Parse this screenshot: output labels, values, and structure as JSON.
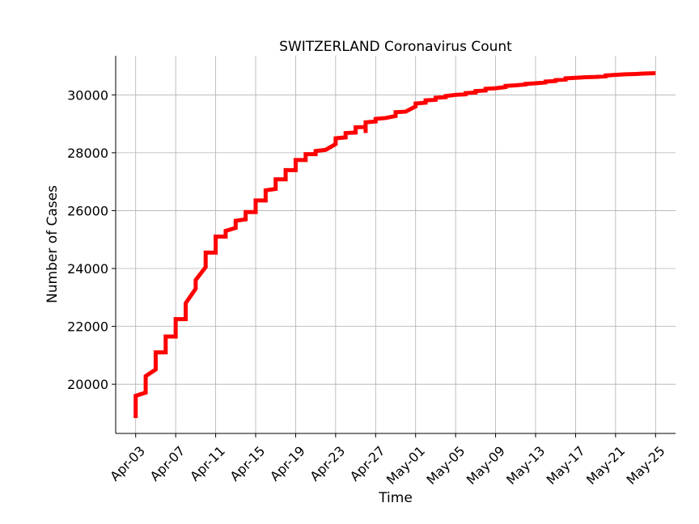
{
  "chart_data": {
    "type": "line",
    "title": "SWITZERLAND Coronavirus Count",
    "xlabel": "Time",
    "ylabel": "Number of Cases",
    "x_range": [
      "2020-04-01",
      "2020-05-27"
    ],
    "ylim": [
      18300,
      31350
    ],
    "grid": true,
    "x_ticks": [
      {
        "date": "2020-04-03",
        "label": "Apr-03"
      },
      {
        "date": "2020-04-07",
        "label": "Apr-07"
      },
      {
        "date": "2020-04-11",
        "label": "Apr-11"
      },
      {
        "date": "2020-04-15",
        "label": "Apr-15"
      },
      {
        "date": "2020-04-19",
        "label": "Apr-19"
      },
      {
        "date": "2020-04-23",
        "label": "Apr-23"
      },
      {
        "date": "2020-04-27",
        "label": "Apr-27"
      },
      {
        "date": "2020-05-01",
        "label": "May-01"
      },
      {
        "date": "2020-05-05",
        "label": "May-05"
      },
      {
        "date": "2020-05-09",
        "label": "May-09"
      },
      {
        "date": "2020-05-13",
        "label": "May-13"
      },
      {
        "date": "2020-05-17",
        "label": "May-17"
      },
      {
        "date": "2020-05-21",
        "label": "May-21"
      },
      {
        "date": "2020-05-25",
        "label": "May-25"
      }
    ],
    "y_ticks": [
      {
        "value": 20000,
        "label": "20000"
      },
      {
        "value": 22000,
        "label": "22000"
      },
      {
        "value": 24000,
        "label": "24000"
      },
      {
        "value": 26000,
        "label": "26000"
      },
      {
        "value": 28000,
        "label": "28000"
      },
      {
        "value": 30000,
        "label": "30000"
      }
    ],
    "series": [
      {
        "color": "#ff0000",
        "points": [
          [
            "2020-04-03 00:00",
            18830
          ],
          [
            "2020-04-03 00:00",
            19600
          ],
          [
            "2020-04-04 00:00",
            19710
          ],
          [
            "2020-04-04 00:00",
            20280
          ],
          [
            "2020-04-05 00:00",
            20510
          ],
          [
            "2020-04-05 00:00",
            21100
          ],
          [
            "2020-04-06 00:00",
            21100
          ],
          [
            "2020-04-06 00:00",
            21650
          ],
          [
            "2020-04-07 00:00",
            21650
          ],
          [
            "2020-04-07 00:00",
            22250
          ],
          [
            "2020-04-08 00:00",
            22250
          ],
          [
            "2020-04-08 00:00",
            22800
          ],
          [
            "2020-04-09 00:00",
            23300
          ],
          [
            "2020-04-09 00:00",
            23600
          ],
          [
            "2020-04-10 00:00",
            24050
          ],
          [
            "2020-04-10 00:00",
            24550
          ],
          [
            "2020-04-11 00:00",
            24550
          ],
          [
            "2020-04-11 00:00",
            25100
          ],
          [
            "2020-04-12 00:00",
            25100
          ],
          [
            "2020-04-12 00:00",
            25300
          ],
          [
            "2020-04-13 00:00",
            25400
          ],
          [
            "2020-04-13 00:00",
            25650
          ],
          [
            "2020-04-14 00:00",
            25700
          ],
          [
            "2020-04-14 00:00",
            25950
          ],
          [
            "2020-04-15 00:00",
            25950
          ],
          [
            "2020-04-15 00:00",
            26350
          ],
          [
            "2020-04-16 00:00",
            26350
          ],
          [
            "2020-04-16 00:00",
            26700
          ],
          [
            "2020-04-17 00:00",
            26750
          ],
          [
            "2020-04-17 00:00",
            27080
          ],
          [
            "2020-04-18 00:00",
            27080
          ],
          [
            "2020-04-18 00:00",
            27400
          ],
          [
            "2020-04-19 00:00",
            27400
          ],
          [
            "2020-04-19 00:00",
            27750
          ],
          [
            "2020-04-20 00:00",
            27750
          ],
          [
            "2020-04-20 00:00",
            27950
          ],
          [
            "2020-04-21 00:00",
            27950
          ],
          [
            "2020-04-21 00:00",
            28060
          ],
          [
            "2020-04-22 00:00",
            28100
          ],
          [
            "2020-04-23 00:00",
            28300
          ],
          [
            "2020-04-23 00:00",
            28500
          ],
          [
            "2020-04-24 00:00",
            28530
          ],
          [
            "2020-04-24 00:00",
            28680
          ],
          [
            "2020-04-25 00:00",
            28700
          ],
          [
            "2020-04-25 00:00",
            28880
          ],
          [
            "2020-04-26 00:00",
            28890
          ],
          [
            "2020-04-26 00:00",
            28680
          ],
          [
            "2020-04-26 00:00",
            29050
          ],
          [
            "2020-04-27 00:00",
            29080
          ],
          [
            "2020-04-27 00:00",
            29170
          ],
          [
            "2020-04-28 00:00",
            29200
          ],
          [
            "2020-04-29 00:00",
            29270
          ],
          [
            "2020-04-29 00:00",
            29400
          ],
          [
            "2020-04-30 00:00",
            29420
          ],
          [
            "2020-05-01 00:00",
            29600
          ],
          [
            "2020-05-01 00:00",
            29700
          ],
          [
            "2020-05-02 00:00",
            29730
          ],
          [
            "2020-05-02 00:00",
            29810
          ],
          [
            "2020-05-03 00:00",
            29830
          ],
          [
            "2020-05-03 00:00",
            29900
          ],
          [
            "2020-05-04 00:00",
            29920
          ],
          [
            "2020-05-04 00:00",
            29960
          ],
          [
            "2020-05-05 00:00",
            30000
          ],
          [
            "2020-05-06 00:00",
            30020
          ],
          [
            "2020-05-06 00:00",
            30060
          ],
          [
            "2020-05-07 00:00",
            30080
          ],
          [
            "2020-05-07 00:00",
            30130
          ],
          [
            "2020-05-08 00:00",
            30150
          ],
          [
            "2020-05-08 00:00",
            30210
          ],
          [
            "2020-05-09 00:00",
            30230
          ],
          [
            "2020-05-10 00:00",
            30270
          ],
          [
            "2020-05-10 00:00",
            30310
          ],
          [
            "2020-05-11 00:00",
            30330
          ],
          [
            "2020-05-12 00:00",
            30360
          ],
          [
            "2020-05-12 00:00",
            30380
          ],
          [
            "2020-05-13 00:00",
            30400
          ],
          [
            "2020-05-14 00:00",
            30430
          ],
          [
            "2020-05-14 00:00",
            30460
          ],
          [
            "2020-05-15 00:00",
            30480
          ],
          [
            "2020-05-15 00:00",
            30510
          ],
          [
            "2020-05-16 00:00",
            30530
          ],
          [
            "2020-05-16 00:00",
            30570
          ],
          [
            "2020-05-17 00:00",
            30590
          ],
          [
            "2020-05-18 00:00",
            30610
          ],
          [
            "2020-05-19 00:00",
            30620
          ],
          [
            "2020-05-20 00:00",
            30640
          ],
          [
            "2020-05-20 00:00",
            30670
          ],
          [
            "2020-05-21 00:00",
            30690
          ],
          [
            "2020-05-22 00:00",
            30710
          ],
          [
            "2020-05-23 00:00",
            30720
          ],
          [
            "2020-05-24 00:00",
            30740
          ],
          [
            "2020-05-25 00:00",
            30750
          ]
        ]
      }
    ]
  }
}
